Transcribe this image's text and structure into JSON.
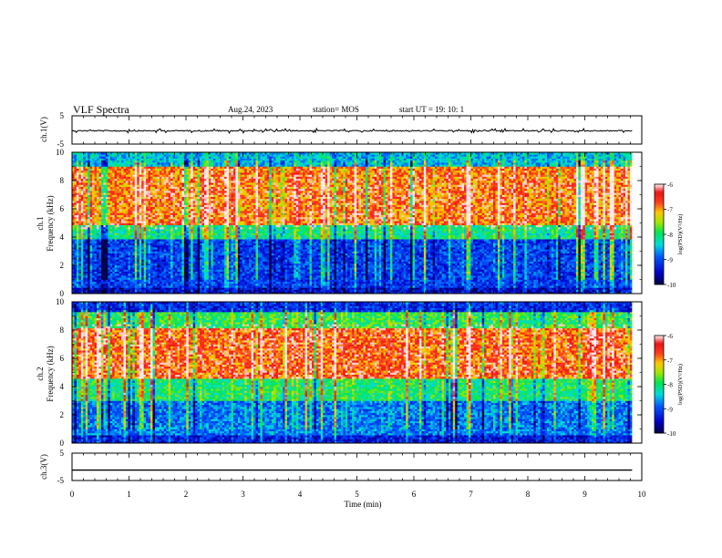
{
  "header": {
    "title": "VLF Spectra",
    "date": "Aug.24, 2023",
    "station": "station= MOS",
    "start_time": "start  UT =   19: 10: 1"
  },
  "colors": {
    "frame": "#000000",
    "background": "#ffffff",
    "waveform": "#000000"
  },
  "chart_data": [
    {
      "type": "line",
      "panel": "ch1-waveform",
      "ylabel": "ch.1(V)",
      "ylim": [
        -5,
        5
      ],
      "y_ticks": [
        "5",
        "-5"
      ],
      "x": [
        0,
        10
      ],
      "values": [
        -0.3,
        -0.3
      ],
      "note_text": ""
    },
    {
      "type": "heatmap",
      "panel": "ch1-spectrogram",
      "ylabel_lines": [
        "ch.1",
        "Frequency (kHz)"
      ],
      "ylim": [
        0,
        10
      ],
      "y_ticks": [
        "0",
        "2",
        "4",
        "6",
        "8",
        "10"
      ],
      "xlim": [
        0,
        10
      ],
      "bands": [
        {
          "from": 0,
          "to": 0.4,
          "level": -9.5
        },
        {
          "from": 0.4,
          "to": 3.8,
          "level": -9.1
        },
        {
          "from": 3.8,
          "to": 4.8,
          "level": -8.1
        },
        {
          "from": 4.8,
          "to": 9.0,
          "level": -6.9
        },
        {
          "from": 9.0,
          "to": 10.0,
          "level": -8.5
        }
      ],
      "colorbar": {
        "label": "log(PSD)(V²/Hz)",
        "range": [
          -10,
          -6
        ],
        "ticks": [
          "-6",
          "-7",
          "-8",
          "-9",
          "-10"
        ]
      }
    },
    {
      "type": "heatmap",
      "panel": "ch2-spectrogram",
      "ylabel_lines": [
        "ch.2",
        "Frequency (kHz)"
      ],
      "ylim": [
        0,
        10
      ],
      "y_ticks": [
        "0",
        "2",
        "4",
        "6",
        "8",
        "10"
      ],
      "xlim": [
        0,
        10
      ],
      "bands": [
        {
          "from": 0,
          "to": 0.5,
          "level": -9.3
        },
        {
          "from": 0.5,
          "to": 3.0,
          "level": -8.8
        },
        {
          "from": 3.0,
          "to": 4.5,
          "level": -8.0
        },
        {
          "from": 4.5,
          "to": 8.2,
          "level": -6.8
        },
        {
          "from": 8.2,
          "to": 9.3,
          "level": -7.9
        },
        {
          "from": 9.3,
          "to": 10.0,
          "level": -9.2
        }
      ],
      "colorbar": {
        "label": "log(PSD)(V²/Hz)",
        "range": [
          -10,
          -6
        ],
        "ticks": [
          "-6",
          "-7",
          "-8",
          "-9",
          "-10"
        ]
      }
    },
    {
      "type": "line",
      "panel": "ch3-waveform",
      "ylabel": "ch.3(V)",
      "ylim": [
        -5,
        5
      ],
      "y_ticks": [
        "5",
        "-5"
      ],
      "x": [
        0,
        10
      ],
      "values": [
        -1.2,
        -1.2
      ]
    }
  ],
  "x_axis": {
    "label": "Time  (min)",
    "range": [
      0,
      10
    ],
    "ticks": [
      "0",
      "1",
      "2",
      "3",
      "4",
      "5",
      "6",
      "7",
      "8",
      "9",
      "10"
    ]
  }
}
